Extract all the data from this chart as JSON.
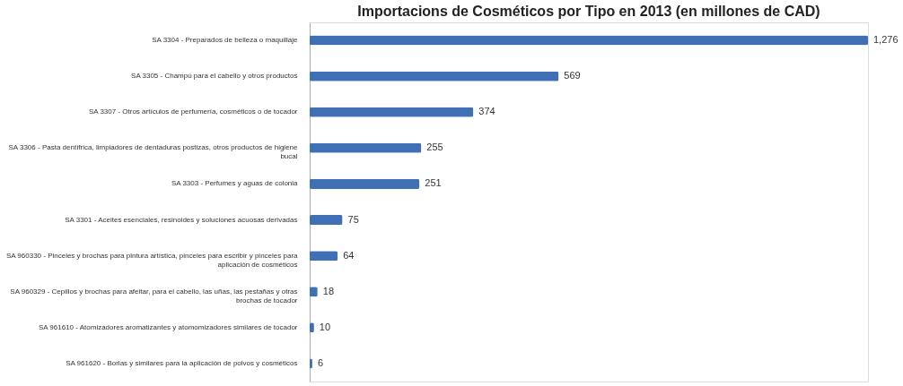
{
  "chart_data": {
    "type": "bar",
    "orientation": "horizontal",
    "title": "Importacions de Cosméticos por Tipo en 2013 (en millones de CAD)",
    "categories": [
      "SA 3304 - Preparados de belleza o maquillaje",
      "SA 3305 - Champú para el cabello y otros productos",
      "SA 3307 - Otros artículos de perfumería, cosméticos o de tocador",
      "SA 3306 - Pasta dentífrica, limpiadores de dentaduras postizas, otros productos de higiene bucal",
      "SA 3303 - Perfumes y aguas de colonia",
      "SA 3301 - Aceites esenciales, resinoides y soluciones acuosas derivadas",
      "SA 960330 - Pinceles y brochas para pintura artística, pinceles para escribir y pinceles para aplicación de cosméticos",
      "SA 960329 - Cepillos y brochas para afeitar, para el cabello, las uñas, las pestañas y otras brochas de tocador",
      "SA 961610 - Atomizadores aromatizantes y atomomizadores similares de tocador",
      "SA 961620 - Borlas y similares para la aplicación de polvos y cosméticos"
    ],
    "values": [
      1276,
      569,
      374,
      255,
      251,
      75,
      64,
      18,
      10,
      6
    ],
    "color": "#3f6fb5",
    "value_labels": [
      "1,276",
      "569",
      "374",
      "255",
      "251",
      "75",
      "64",
      "18",
      "10",
      "6"
    ]
  }
}
